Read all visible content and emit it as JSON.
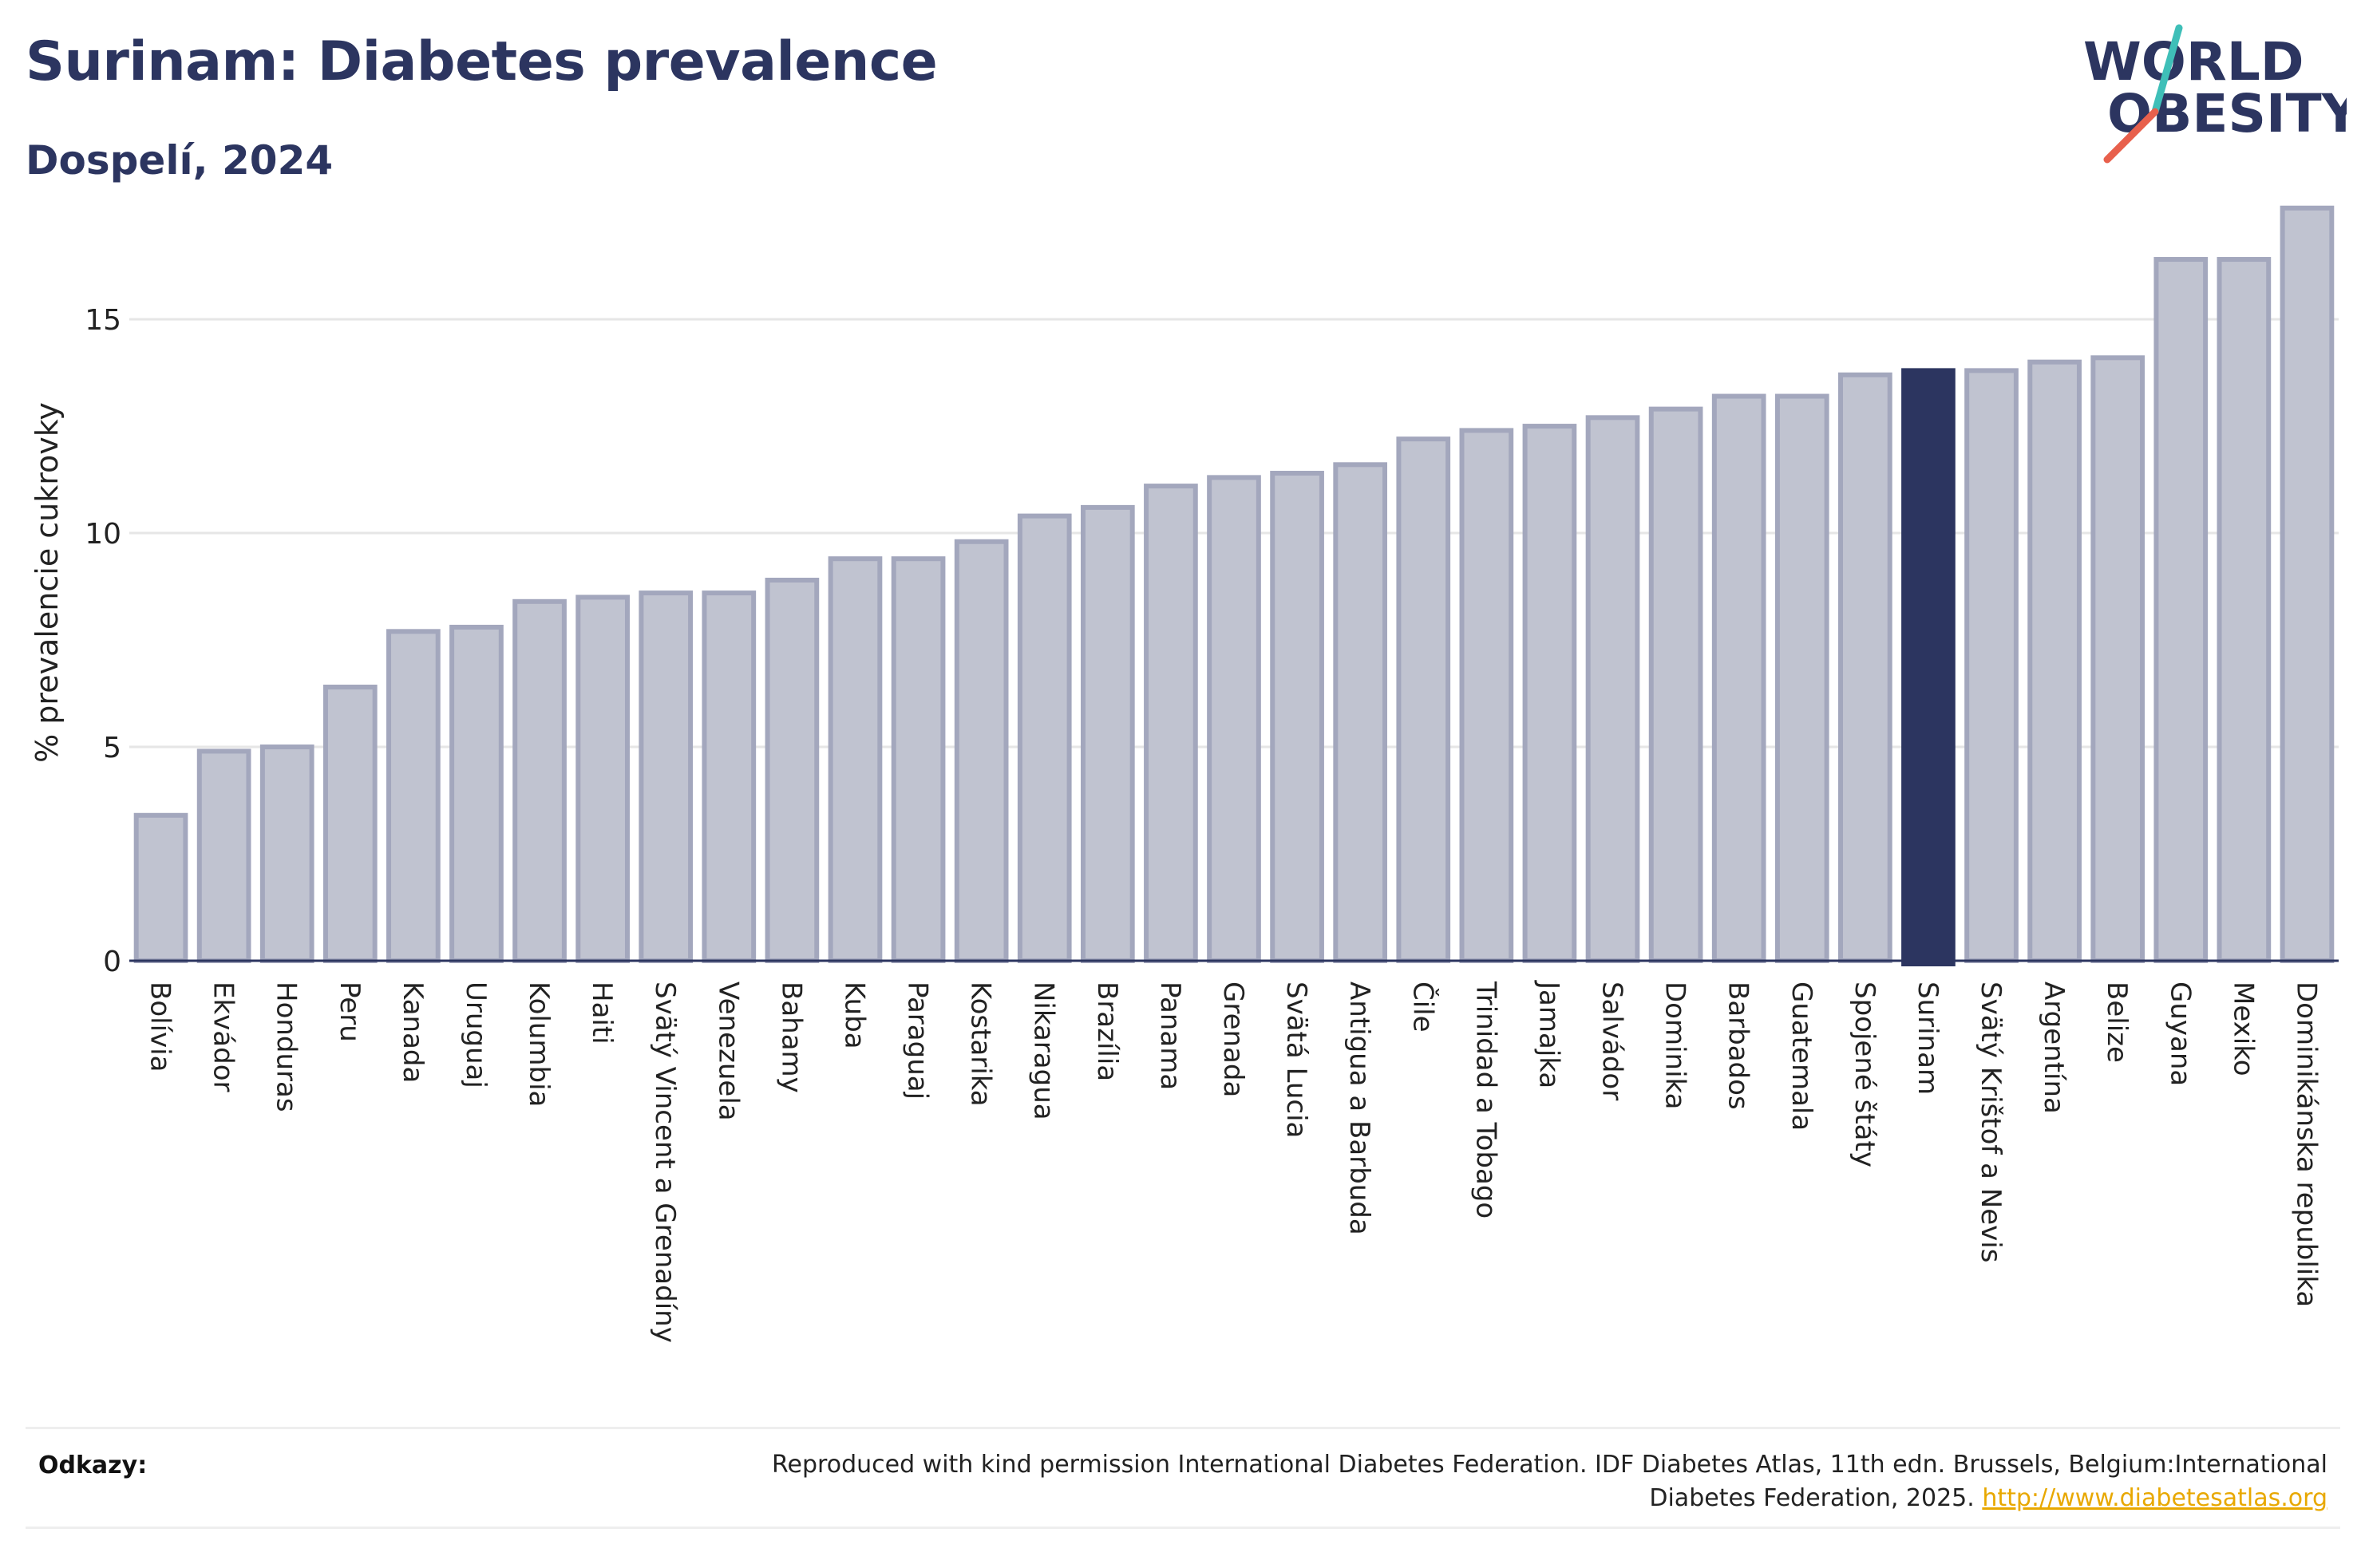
{
  "title": "Surinam: Diabetes prevalence",
  "subtitle": "Dospelí, 2024",
  "logo": {
    "line1": "WORLD",
    "line2": "OBESITY"
  },
  "colors": {
    "bar": "#c0c3d0",
    "bar_border": "#a3a7bd",
    "highlight": "#2c3560",
    "title": "#2c3560",
    "link": "#e8a800",
    "logo_accent_teal": "#3fbfb8",
    "logo_accent_red": "#e8604c"
  },
  "chart_data": {
    "type": "bar",
    "ylabel": "% prevalencie cukrovky",
    "xlabel": "",
    "ylim": [
      0,
      18
    ],
    "yticks": [
      0,
      5,
      10,
      15
    ],
    "grid": true,
    "highlight": "Surinam",
    "categories": [
      "Bolívia",
      "Ekvádor",
      "Honduras",
      "Peru",
      "Kanada",
      "Uruguaj",
      "Kolumbia",
      "Haiti",
      "Svätý Vincent a Grenadíny",
      "Venezuela",
      "Bahamy",
      "Kuba",
      "Paraguaj",
      "Kostarika",
      "Nikaragua",
      "Brazília",
      "Panama",
      "Grenada",
      "Svätá Lucia",
      "Antigua a Barbuda",
      "Čile",
      "Trinidad a Tobago",
      "Jamajka",
      "Salvádor",
      "Dominika",
      "Barbados",
      "Guatemala",
      "Spojené štáty",
      "Surinam",
      "Svätý Krištof a Nevis",
      "Argentína",
      "Belize",
      "Guyana",
      "Mexiko",
      "Dominikánska republika"
    ],
    "values": [
      3.4,
      4.9,
      5.0,
      6.4,
      7.7,
      7.8,
      8.4,
      8.5,
      8.6,
      8.6,
      8.9,
      9.4,
      9.4,
      9.8,
      10.4,
      10.6,
      11.1,
      11.3,
      11.4,
      11.6,
      12.2,
      12.4,
      12.5,
      12.7,
      12.9,
      13.2,
      13.2,
      13.7,
      13.8,
      13.8,
      14.0,
      14.1,
      16.4,
      16.4,
      17.6
    ]
  },
  "footer": {
    "label": "Odkazy:",
    "text_line1": "Reproduced with kind permission International Diabetes Federation. IDF Diabetes Atlas, 11th edn. Brussels, Belgium:International",
    "text_line2": "Diabetes Federation, 2025.",
    "link": "http://www.diabetesatlas.org"
  }
}
